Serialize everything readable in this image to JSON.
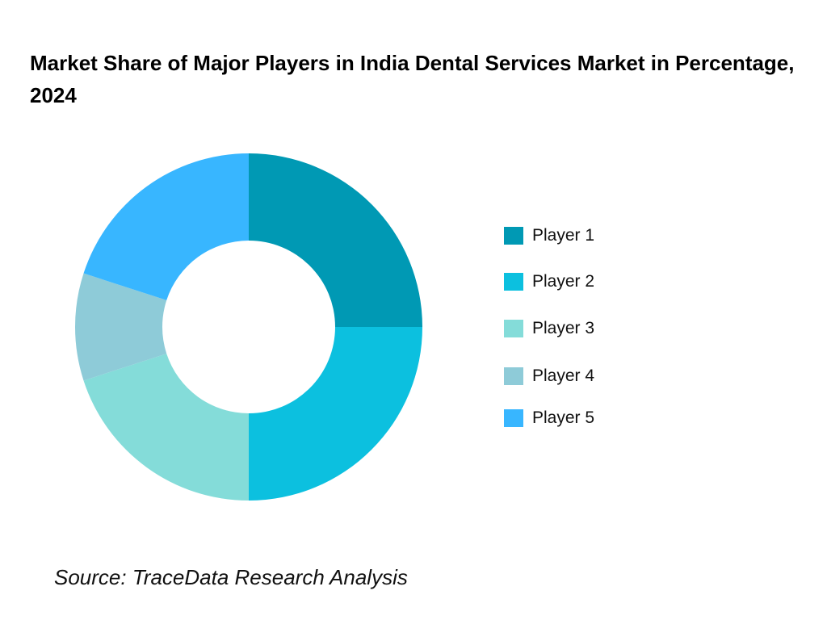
{
  "chart_data": {
    "type": "pie",
    "variant": "donut",
    "title": "Market Share of Major Players in India Dental Services Market in Percentage, 2024",
    "categories": [
      "Player 1",
      "Player 2",
      "Player 3",
      "Player 4",
      "Player 5"
    ],
    "values": [
      25,
      25,
      20,
      10,
      20
    ],
    "colors": [
      "#0099b4",
      "#0cc0df",
      "#84dcd9",
      "#8ecbd8",
      "#38b6ff"
    ],
    "legend_position": "right",
    "source": "Source: TraceData Research Analysis"
  }
}
